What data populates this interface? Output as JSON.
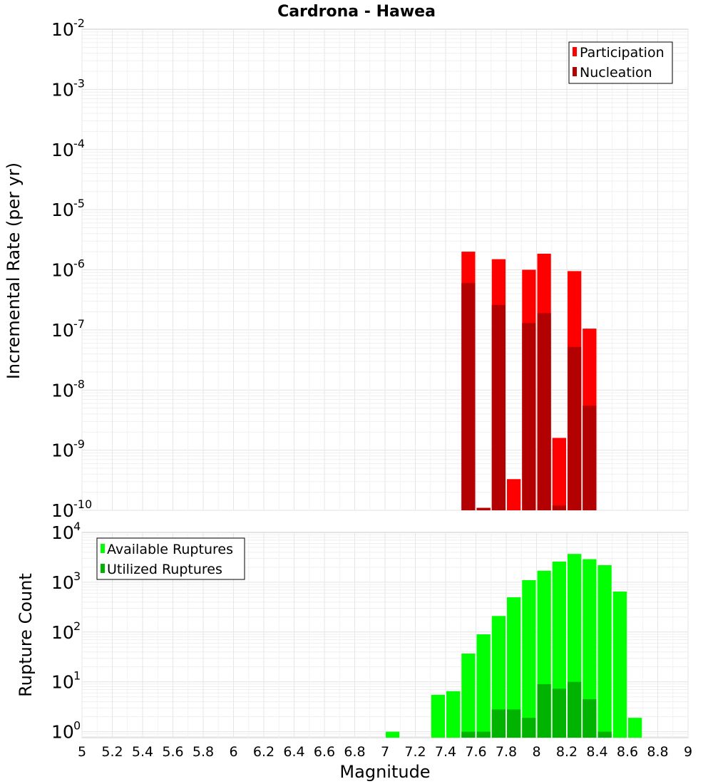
{
  "chart_data": [
    {
      "type": "bar",
      "title": "Cardrona - Hawea",
      "xlabel": "Magnitude",
      "ylabel": "Incremental Rate (per yr)",
      "yscale": "log",
      "xlim": [
        5,
        9
      ],
      "ylim_exp": [
        -10,
        -2
      ],
      "y_tick_exponents": [
        "-2",
        "-3",
        "-4",
        "-5",
        "-6",
        "-7",
        "-8",
        "-9",
        "-10"
      ],
      "legend_position": "top-right",
      "bin_width": 0.1,
      "series": [
        {
          "name": "Participation",
          "color": "#ff0000",
          "x": [
            7.55,
            7.65,
            7.75,
            7.85,
            7.95,
            8.05,
            8.15,
            8.25,
            8.35
          ],
          "values": [
            2e-06,
            1.1e-10,
            1.5e-06,
            3.3e-10,
            1e-06,
            1.85e-06,
            1.6e-09,
            9.5e-07,
            1.05e-07
          ]
        },
        {
          "name": "Nucleation",
          "color": "#b30000",
          "x": [
            7.55,
            7.65,
            7.75,
            7.85,
            7.95,
            8.05,
            8.15,
            8.25,
            8.35
          ],
          "values": [
            6e-07,
            1.1e-10,
            2.6e-07,
            0,
            1.3e-07,
            1.9e-07,
            1.2e-10,
            5.2e-08,
            5.5e-09
          ]
        }
      ]
    },
    {
      "type": "bar",
      "xlabel": "Magnitude",
      "ylabel": "Rupture Count",
      "yscale": "log",
      "xlim": [
        5,
        9
      ],
      "ylim_exp": [
        -0.12,
        4
      ],
      "y_tick_exponents": [
        "4",
        "3",
        "2",
        "1",
        "0"
      ],
      "x_tick_labels": [
        "5",
        "5.2",
        "5.4",
        "5.6",
        "5.8",
        "6",
        "6.2",
        "6.4",
        "6.6",
        "6.8",
        "7",
        "7.2",
        "7.4",
        "7.6",
        "7.8",
        "8",
        "8.2",
        "8.4",
        "8.6",
        "8.8",
        "9"
      ],
      "legend_position": "top-left",
      "bin_width": 0.1,
      "series": [
        {
          "name": "Available Ruptures",
          "color": "#00ff00",
          "x": [
            7.05,
            7.35,
            7.45,
            7.55,
            7.65,
            7.75,
            7.85,
            7.95,
            8.05,
            8.15,
            8.25,
            8.35,
            8.45,
            8.55,
            8.65
          ],
          "values": [
            1,
            5.5,
            6.5,
            37,
            90,
            210,
            500,
            1100,
            1700,
            2600,
            3700,
            2900,
            2200,
            650,
            1.9
          ]
        },
        {
          "name": "Utilized Ruptures",
          "color": "#00b300",
          "x": [
            7.55,
            7.65,
            7.75,
            7.85,
            7.95,
            8.05,
            8.15,
            8.25,
            8.35,
            8.45
          ],
          "values": [
            1,
            1,
            2.8,
            2.8,
            1.9,
            9,
            7.3,
            10,
            4.5,
            1
          ]
        }
      ]
    }
  ]
}
